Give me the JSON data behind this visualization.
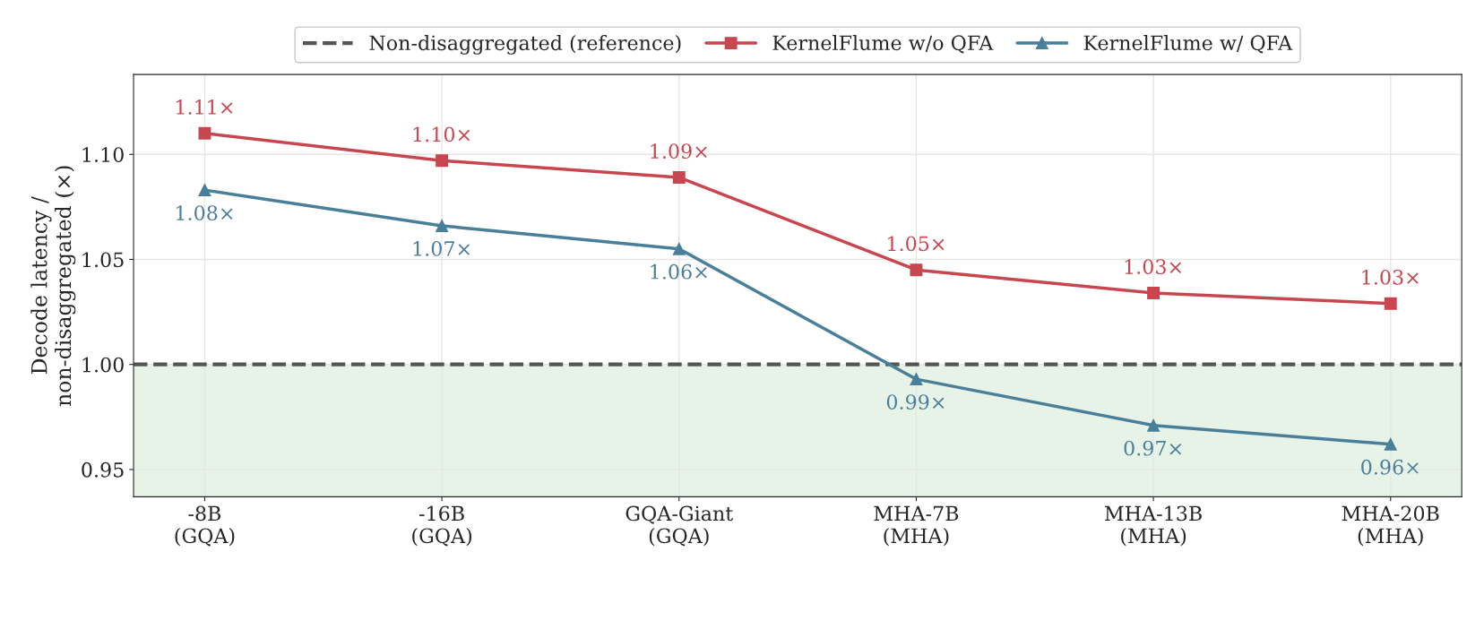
{
  "chart_data": {
    "type": "line",
    "ylabel": "Decode latency /\nnon-disaggregated (×)",
    "categories": [
      "-8B\n(GQA)",
      "-16B\n(GQA)",
      "GQA-Giant\n(GQA)",
      "MHA-7B\n(MHA)",
      "MHA-13B\n(MHA)",
      "MHA-20B\n(MHA)"
    ],
    "series": [
      {
        "name": "KernelFlume w/o QFA",
        "color": "#c8464f",
        "marker": "square",
        "values": [
          1.11,
          1.097,
          1.089,
          1.045,
          1.034,
          1.029
        ],
        "value_labels": [
          "1.11×",
          "1.10×",
          "1.09×",
          "1.05×",
          "1.03×",
          "1.03×"
        ]
      },
      {
        "name": "KernelFlume w/ QFA",
        "color": "#4a7f9a",
        "marker": "triangle",
        "values": [
          1.083,
          1.066,
          1.055,
          0.993,
          0.971,
          0.962
        ],
        "value_labels": [
          "1.08×",
          "1.07×",
          "1.06×",
          "0.99×",
          "0.97×",
          "0.96×"
        ]
      }
    ],
    "ylim": [
      0.937,
      1.138
    ],
    "yticks": [
      0.95,
      {
        "value": 1.0,
        "label": "1.00"
      },
      1.05,
      {
        "value": 1.1,
        "label": "1.10"
      }
    ],
    "ref_lines": [
      {
        "axis": "y",
        "value": 1.0,
        "label": "Non-disaggregated (reference)",
        "color": "#555555",
        "line_style": "dashed"
      }
    ],
    "bands": [
      {
        "axis": "y",
        "from": 0.937,
        "to": 1.0,
        "color": "#e8f3e8"
      }
    ],
    "grid": true,
    "legend": "top",
    "line_style": "solid"
  }
}
